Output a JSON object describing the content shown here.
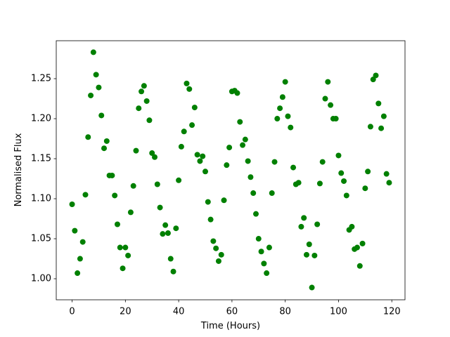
{
  "chart_data": {
    "type": "scatter",
    "xlabel": "Time (Hours)",
    "ylabel": "Normalised Flux",
    "x": [
      0,
      1,
      2,
      3,
      4,
      5,
      6,
      7,
      8,
      9,
      10,
      11,
      12,
      13,
      14,
      15,
      16,
      17,
      18,
      19,
      20,
      21,
      22,
      23,
      24,
      25,
      26,
      27,
      28,
      29,
      30,
      31,
      32,
      33,
      34,
      35,
      36,
      37,
      38,
      39,
      40,
      41,
      42,
      43,
      44,
      45,
      46,
      47,
      48,
      49,
      50,
      51,
      52,
      53,
      54,
      55,
      56,
      57,
      58,
      59,
      60,
      61,
      62,
      63,
      64,
      65,
      66,
      67,
      68,
      69,
      70,
      71,
      72,
      73,
      74,
      75,
      76,
      77,
      78,
      79,
      80,
      81,
      82,
      83,
      84,
      85,
      86,
      87,
      88,
      89,
      90,
      91,
      92,
      93,
      94,
      95,
      96,
      97,
      98,
      99,
      100,
      101,
      102,
      103,
      104,
      105,
      106,
      107,
      108,
      109,
      110,
      111,
      112,
      113,
      114,
      115,
      116,
      117,
      118,
      119
    ],
    "series": [
      {
        "color": "#008000",
        "values": [
          1.093,
          1.06,
          1.007,
          1.025,
          1.046,
          1.105,
          1.177,
          1.229,
          1.283,
          1.255,
          1.239,
          1.204,
          1.163,
          1.172,
          1.129,
          1.129,
          1.104,
          1.068,
          1.039,
          1.013,
          1.039,
          1.029,
          1.083,
          1.116,
          1.16,
          1.213,
          1.234,
          1.241,
          1.222,
          1.198,
          1.157,
          1.152,
          1.118,
          1.089,
          1.056,
          1.067,
          1.057,
          1.025,
          1.009,
          1.063,
          1.123,
          1.165,
          1.184,
          1.244,
          1.237,
          1.192,
          1.214,
          1.155,
          1.147,
          1.153,
          1.134,
          1.096,
          1.074,
          1.047,
          1.038,
          1.022,
          1.03,
          1.098,
          1.142,
          1.164,
          1.234,
          1.235,
          1.232,
          1.196,
          1.167,
          1.174,
          1.147,
          1.127,
          1.107,
          1.081,
          1.05,
          1.034,
          1.019,
          1.007,
          1.039,
          1.107,
          1.146,
          1.2,
          1.213,
          1.227,
          1.246,
          1.203,
          1.189,
          1.139,
          1.118,
          1.12,
          1.065,
          1.076,
          1.03,
          1.043,
          0.989,
          1.029,
          1.068,
          1.119,
          1.146,
          1.225,
          1.246,
          1.217,
          1.2,
          1.2,
          1.154,
          1.132,
          1.122,
          1.104,
          1.061,
          1.065,
          1.037,
          1.039,
          1.016,
          1.044,
          1.113,
          1.134,
          1.19,
          1.249,
          1.254,
          1.219,
          1.188,
          1.203,
          1.131,
          1.12
        ]
      }
    ],
    "xlim": [
      -5.95,
      124.95
    ],
    "xticks": [
      0,
      20,
      40,
      60,
      80,
      100,
      120
    ],
    "ylim": [
      0.9737,
      1.2974
    ],
    "yticks": [
      {
        "value": 1,
        "label": "1.00"
      },
      {
        "value": 1.05,
        "label": "1.05"
      },
      {
        "value": 1.1,
        "label": "1.10"
      },
      {
        "value": 1.15,
        "label": "1.15"
      },
      {
        "value": 1.2,
        "label": "1.20"
      },
      {
        "value": 1.25,
        "label": "1.25"
      }
    ],
    "grid": false
  }
}
